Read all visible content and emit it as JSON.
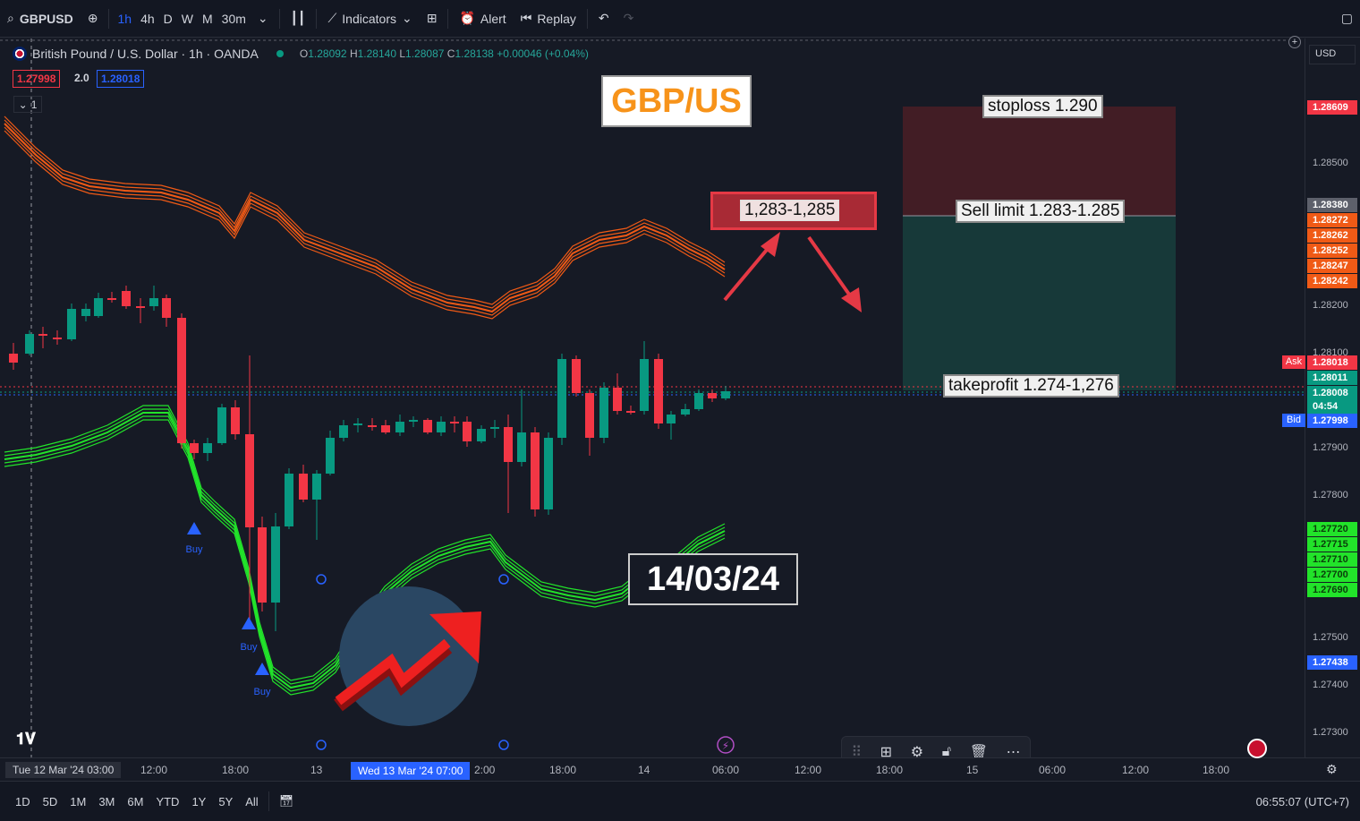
{
  "toolbar": {
    "symbol": "GBPUSD",
    "intervals": [
      "1h",
      "4h",
      "D",
      "W",
      "M",
      "30m"
    ],
    "active_interval": "1h",
    "indicators_label": "Indicators",
    "alert_label": "Alert",
    "replay_label": "Replay"
  },
  "legend": {
    "title": "British Pound / U.S. Dollar · 1h · OANDA",
    "open_label": "O",
    "open": "1.28092",
    "high_label": "H",
    "high": "1.28140",
    "low_label": "L",
    "low": "1.28087",
    "close_label": "C",
    "close": "1.28138",
    "change": "+0.00046 (+0.04%)",
    "bid_badge": "1.27998",
    "spread": "2.0",
    "ask_badge": "1.28018",
    "collapse_count": "1"
  },
  "currency": "USD",
  "price_axis": {
    "ticks": [
      "1.28500",
      "1.28200",
      "1.28100",
      "1.27900",
      "1.27800",
      "1.27500",
      "1.27400",
      "1.27300"
    ],
    "tags": [
      {
        "value": "1.28609",
        "color": "#f23645"
      },
      {
        "value": "1.28380",
        "color": "#5d606b"
      },
      {
        "value": "1.28272",
        "color": "#f05a16"
      },
      {
        "value": "1.28262",
        "color": "#f05a16"
      },
      {
        "value": "1.28252",
        "color": "#f05a16"
      },
      {
        "value": "1.28247",
        "color": "#f05a16"
      },
      {
        "value": "1.28242",
        "color": "#f05a16"
      },
      {
        "value": "1.28018",
        "color": "#f23645"
      },
      {
        "value": "1.28011",
        "color": "#089981"
      },
      {
        "value": "1.28008",
        "color": "#089981"
      },
      {
        "value": "04:54",
        "color": "#089981"
      },
      {
        "value": "1.27998",
        "color": "#2962ff"
      },
      {
        "value": "1.27720",
        "color": "#22e32a"
      },
      {
        "value": "1.27715",
        "color": "#22e32a"
      },
      {
        "value": "1.27710",
        "color": "#22e32a"
      },
      {
        "value": "1.27700",
        "color": "#22e32a"
      },
      {
        "value": "1.27690",
        "color": "#22e32a"
      },
      {
        "value": "1.27438",
        "color": "#2962ff"
      }
    ],
    "ask_label": "Ask",
    "bid_label": "Bid"
  },
  "time_axis": {
    "ticks": [
      "12:00",
      "18:00",
      "13",
      "2:00",
      "18:00",
      "14",
      "06:00",
      "12:00",
      "18:00",
      "15",
      "06:00",
      "12:00",
      "18:00"
    ],
    "left_label": "Tue 12 Mar '24   03:00",
    "cursor_label": "Wed 13 Mar '24   07:00"
  },
  "ranges": [
    "1D",
    "5D",
    "1M",
    "3M",
    "6M",
    "YTD",
    "1Y",
    "5Y",
    "All"
  ],
  "clock": "06:55:07 (UTC+7)",
  "annotations": {
    "title": "GBP/US",
    "date": "14/03/24",
    "range": "1,283-1,285",
    "stoploss": "stoploss 1.290",
    "sell_limit": "Sell limit 1.283-1.285",
    "takeprofit": "takeprofit 1.274-1,276",
    "buy_label": "Buy"
  },
  "colors": {
    "up": "#089981",
    "down": "#f23645",
    "upper_band": "#f05a16",
    "lower_band": "#22e32a",
    "bg": "#161a25"
  }
}
